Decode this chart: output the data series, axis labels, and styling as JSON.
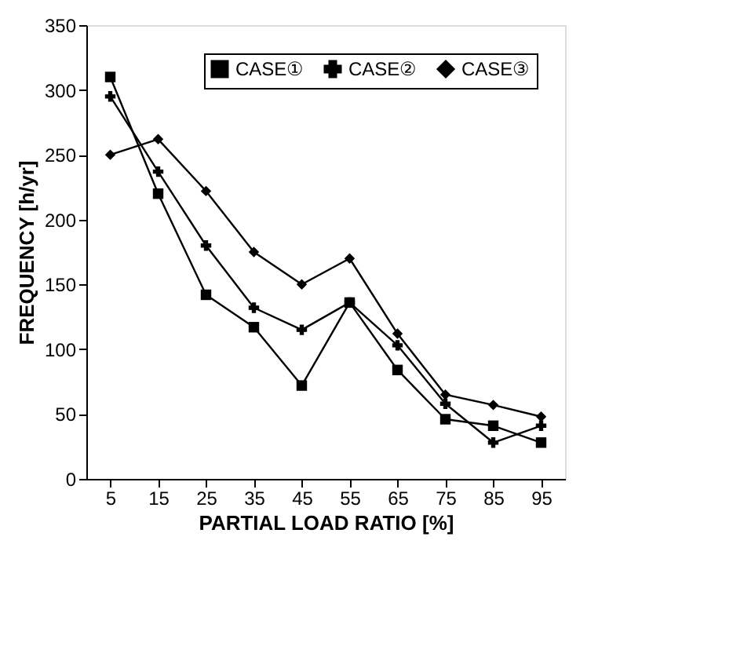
{
  "chart_data": {
    "type": "line",
    "xlabel": "PARTIAL LOAD RATIO [%]",
    "ylabel": "FREQUENCY [h/yr]",
    "categories": [
      "5",
      "15",
      "25",
      "35",
      "45",
      "55",
      "65",
      "75",
      "85",
      "95"
    ],
    "ylim": [
      0,
      350
    ],
    "yticks": [
      0,
      50,
      100,
      150,
      200,
      250,
      300,
      350
    ],
    "grid": false,
    "legend": "top right",
    "line_style": "solid",
    "series": [
      {
        "name": "CASE①",
        "color": "#000000",
        "marker": "square",
        "values": [
          310,
          220,
          142,
          117,
          72,
          136,
          84,
          46,
          41,
          28
        ]
      },
      {
        "name": "CASE②",
        "color": "#000000",
        "marker": "cross",
        "values": [
          295,
          237,
          180,
          132,
          115,
          136,
          103,
          58,
          28,
          41
        ]
      },
      {
        "name": "CASE③",
        "color": "#000000",
        "marker": "diamond",
        "values": [
          250,
          262,
          222,
          175,
          150,
          170,
          112,
          65,
          57,
          48
        ]
      }
    ]
  }
}
